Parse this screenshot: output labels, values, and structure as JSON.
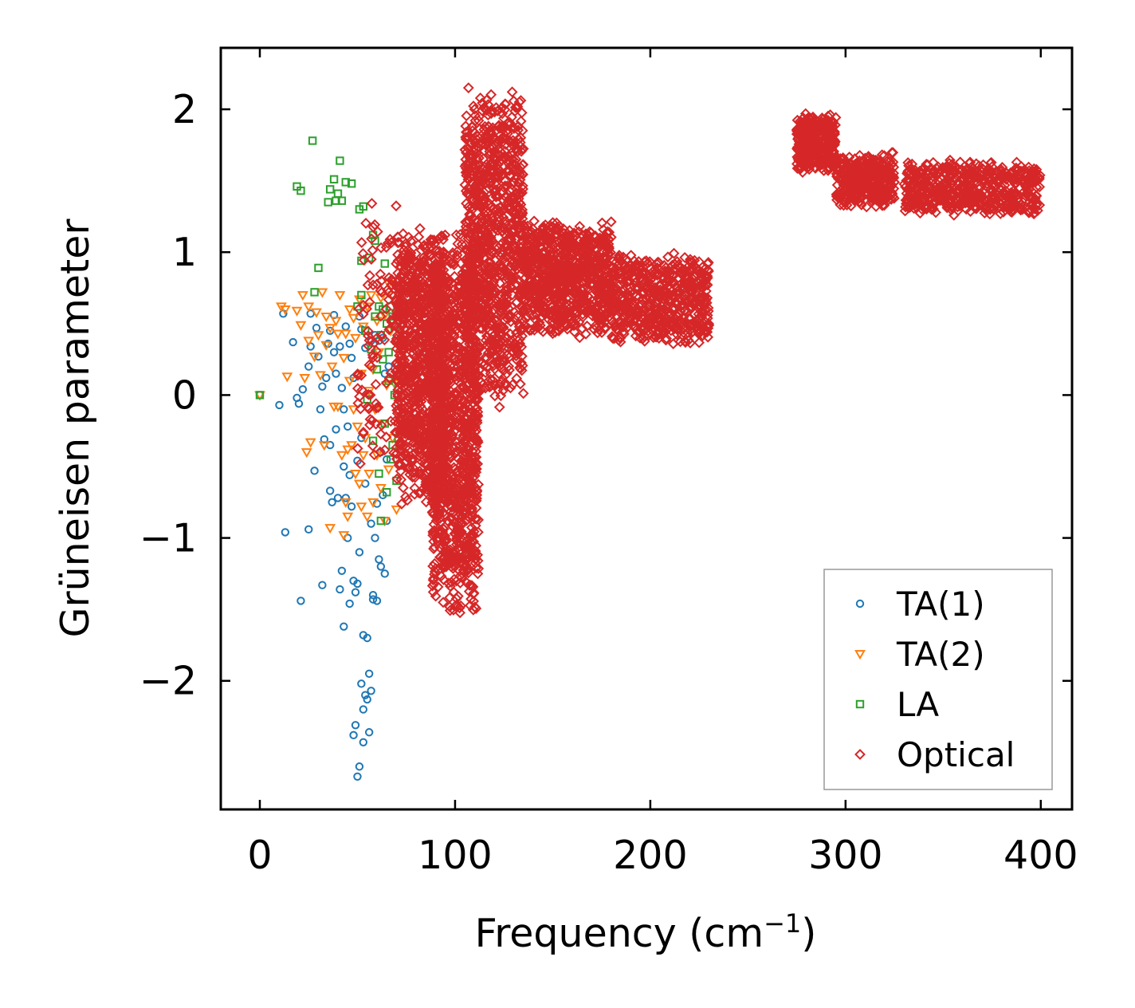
{
  "chart_data": {
    "type": "scatter",
    "xlabel": "Frequency (cm",
    "xlabel_sup": "−1",
    "xlabel_close": ")",
    "ylabel": "Grüneisen parameter",
    "xlim": [
      -20,
      416
    ],
    "ylim": [
      -2.9,
      2.43
    ],
    "xticks": [
      0,
      100,
      200,
      300,
      400
    ],
    "xtick_labels": [
      "0",
      "100",
      "200",
      "300",
      "400"
    ],
    "yticks": [
      -2,
      -1,
      0,
      1,
      2
    ],
    "ytick_labels": [
      "−2",
      "−1",
      "0",
      "1",
      "2"
    ],
    "legend_position": "bottom-right",
    "series": [
      {
        "name": "TA(1)",
        "marker": "circle",
        "color": "#1f77b4",
        "points": [
          [
            0,
            0
          ],
          [
            10,
            -0.07
          ],
          [
            12,
            0.57
          ],
          [
            13,
            -0.96
          ],
          [
            17,
            0.37
          ],
          [
            19,
            -0.02
          ],
          [
            20,
            -0.06
          ],
          [
            21,
            -1.44
          ],
          [
            22,
            0.04
          ],
          [
            25,
            0.2
          ],
          [
            25,
            -0.94
          ],
          [
            26,
            0.34
          ],
          [
            26,
            0.57
          ],
          [
            28,
            -0.53
          ],
          [
            29,
            0.47
          ],
          [
            30,
            0.27
          ],
          [
            31,
            -0.1
          ],
          [
            32,
            0.06
          ],
          [
            32,
            -1.33
          ],
          [
            33,
            -0.31
          ],
          [
            34,
            0.12
          ],
          [
            35,
            0.36
          ],
          [
            36,
            -0.35
          ],
          [
            36,
            0.45
          ],
          [
            36,
            -0.67
          ],
          [
            37,
            -0.75
          ],
          [
            38,
            0.56
          ],
          [
            38,
            0.3
          ],
          [
            39,
            0.15
          ],
          [
            39,
            -0.24
          ],
          [
            40,
            -0.72
          ],
          [
            41,
            -1.36
          ],
          [
            41,
            0.34
          ],
          [
            42,
            0.05
          ],
          [
            42,
            -1.23
          ],
          [
            43,
            -0.5
          ],
          [
            43,
            -0.1
          ],
          [
            43,
            -1.62
          ],
          [
            44,
            -0.72
          ],
          [
            44,
            0.48
          ],
          [
            45,
            -1.0
          ],
          [
            45,
            -0.22
          ],
          [
            46,
            -0.56
          ],
          [
            46,
            0.36
          ],
          [
            46,
            -1.46
          ],
          [
            47,
            0.26
          ],
          [
            47,
            -0.78
          ],
          [
            48,
            -1.3
          ],
          [
            48,
            -2.38
          ],
          [
            48,
            0.12
          ],
          [
            49,
            -1.38
          ],
          [
            49,
            -2.31
          ],
          [
            50,
            -1.32
          ],
          [
            50,
            -2.67
          ],
          [
            50,
            -0.46
          ],
          [
            51,
            0.55
          ],
          [
            51,
            -2.6
          ],
          [
            51,
            -1.1
          ],
          [
            52,
            -2.02
          ],
          [
            52,
            -0.3
          ],
          [
            52,
            0.46
          ],
          [
            53,
            -2.43
          ],
          [
            53,
            -1.68
          ],
          [
            53,
            -2.2
          ],
          [
            54,
            0.33
          ],
          [
            54,
            -0.62
          ],
          [
            54,
            -2.1
          ],
          [
            55,
            -1.7
          ],
          [
            55,
            -2.13
          ],
          [
            56,
            -1.95
          ],
          [
            56,
            0.0
          ],
          [
            56,
            -2.36
          ],
          [
            57,
            -2.07
          ],
          [
            57,
            -0.9
          ],
          [
            57,
            0.38
          ],
          [
            58,
            -1.4
          ],
          [
            58,
            -1.43
          ],
          [
            59,
            -1.0
          ],
          [
            59,
            0.42
          ],
          [
            60,
            -0.76
          ],
          [
            60,
            -1.44
          ],
          [
            61,
            -1.15
          ],
          [
            61,
            0.38
          ],
          [
            62,
            -0.4
          ],
          [
            62,
            -1.2
          ],
          [
            63,
            0.4
          ],
          [
            63,
            -0.7
          ],
          [
            64,
            -1.25
          ],
          [
            64,
            0.15
          ],
          [
            65,
            -0.45
          ],
          [
            65,
            -0.88
          ],
          [
            66,
            0.2
          ]
        ]
      },
      {
        "name": "TA(2)",
        "marker": "triangle-down",
        "color": "#ff7f0e",
        "points": [
          [
            0,
            0
          ],
          [
            11,
            0.62
          ],
          [
            13,
            0.6
          ],
          [
            14,
            0.13
          ],
          [
            19,
            0.59
          ],
          [
            21,
            0.49
          ],
          [
            22,
            0.7
          ],
          [
            23,
            0.12
          ],
          [
            24,
            -0.4
          ],
          [
            25,
            0.38
          ],
          [
            25,
            0.62
          ],
          [
            26,
            -0.33
          ],
          [
            28,
            0.27
          ],
          [
            29,
            0.58
          ],
          [
            30,
            0.42
          ],
          [
            31,
            0.14
          ],
          [
            32,
            0.72
          ],
          [
            33,
            -0.35
          ],
          [
            34,
            0.55
          ],
          [
            34,
            0.35
          ],
          [
            36,
            0.47
          ],
          [
            36,
            -0.93
          ],
          [
            37,
            0.2
          ],
          [
            38,
            -0.08
          ],
          [
            39,
            0.52
          ],
          [
            40,
            -0.08
          ],
          [
            40,
            0.43
          ],
          [
            41,
            0.7
          ],
          [
            42,
            -0.42
          ],
          [
            43,
            0.26
          ],
          [
            43,
            -0.98
          ],
          [
            44,
            -0.75
          ],
          [
            44,
            0.43
          ],
          [
            45,
            -0.38
          ],
          [
            45,
            -0.85
          ],
          [
            46,
            0.6
          ],
          [
            46,
            0.1
          ],
          [
            47,
            -0.35
          ],
          [
            48,
            -0.1
          ],
          [
            48,
            0.54
          ],
          [
            49,
            -0.55
          ],
          [
            49,
            0.4
          ],
          [
            50,
            -0.22
          ],
          [
            51,
            0.67
          ],
          [
            51,
            -0.62
          ],
          [
            52,
            0.15
          ],
          [
            52,
            -0.78
          ],
          [
            53,
            -0.42
          ],
          [
            53,
            0.48
          ],
          [
            54,
            -0.3
          ],
          [
            55,
            0.62
          ],
          [
            55,
            -0.85
          ],
          [
            56,
            0.03
          ],
          [
            56,
            -0.55
          ],
          [
            57,
            0.7
          ],
          [
            58,
            -0.75
          ],
          [
            58,
            0.18
          ],
          [
            59,
            -0.1
          ],
          [
            60,
            0.52
          ],
          [
            60,
            -0.42
          ],
          [
            61,
            0.3
          ],
          [
            62,
            -0.65
          ],
          [
            62,
            0.68
          ],
          [
            63,
            -0.2
          ],
          [
            64,
            0.56
          ],
          [
            64,
            -0.88
          ],
          [
            65,
            0.07
          ],
          [
            66,
            -0.52
          ],
          [
            66,
            0.78
          ],
          [
            67,
            0.45
          ],
          [
            68,
            -0.3
          ],
          [
            68,
            0.7
          ],
          [
            69,
            0.08
          ],
          [
            70,
            -0.8
          ],
          [
            70,
            0.62
          ]
        ]
      },
      {
        "name": "LA",
        "marker": "square",
        "color": "#2ca02c",
        "points": [
          [
            0,
            0
          ],
          [
            19,
            1.46
          ],
          [
            21,
            1.43
          ],
          [
            27,
            1.78
          ],
          [
            28,
            0.72
          ],
          [
            30,
            0.89
          ],
          [
            35,
            1.35
          ],
          [
            36,
            1.44
          ],
          [
            38,
            1.51
          ],
          [
            39,
            1.36
          ],
          [
            40,
            1.41
          ],
          [
            41,
            1.64
          ],
          [
            42,
            1.36
          ],
          [
            44,
            1.49
          ],
          [
            47,
            1.48
          ],
          [
            50,
            0.62
          ],
          [
            51,
            1.3
          ],
          [
            52,
            0.7
          ],
          [
            52,
            0.94
          ],
          [
            53,
            1.32
          ],
          [
            54,
            0.45
          ],
          [
            55,
            -0.03
          ],
          [
            56,
            0.96
          ],
          [
            57,
            0.32
          ],
          [
            58,
            1.12
          ],
          [
            58,
            -0.32
          ],
          [
            59,
            0.55
          ],
          [
            59,
            1.08
          ],
          [
            60,
            0.18
          ],
          [
            61,
            0.62
          ],
          [
            61,
            -0.55
          ],
          [
            62,
            0.42
          ],
          [
            62,
            -0.88
          ],
          [
            63,
            0.25
          ],
          [
            63,
            0.6
          ],
          [
            64,
            -0.2
          ],
          [
            64,
            0.92
          ],
          [
            65,
            0.5
          ],
          [
            65,
            -0.68
          ],
          [
            66,
            0.1
          ],
          [
            66,
            0.3
          ],
          [
            67,
            -0.45
          ],
          [
            67,
            0.62
          ],
          [
            68,
            0.55
          ],
          [
            68,
            -0.35
          ],
          [
            69,
            0.0
          ],
          [
            69,
            0.48
          ],
          [
            70,
            -0.6
          ],
          [
            70,
            0.38
          ],
          [
            71,
            -0.3
          ],
          [
            71,
            0.05
          ],
          [
            72,
            0.56
          ]
        ]
      },
      {
        "name": "Optical",
        "marker": "diamond",
        "color": "#d62728",
        "points": [],
        "regions": [
          {
            "x": [
              50,
              75
            ],
            "y": [
              -0.6,
              1.55
            ],
            "n": 140
          },
          {
            "x": [
              70,
              95
            ],
            "y": [
              -0.8,
              1.2
            ],
            "n": 900
          },
          {
            "x": [
              88,
              112
            ],
            "y": [
              -1.6,
              1.2
            ],
            "n": 1100
          },
          {
            "x": [
              105,
              135
            ],
            "y": [
              -0.1,
              2.2
            ],
            "n": 1000
          },
          {
            "x": [
              135,
              180
            ],
            "y": [
              0.4,
              1.25
            ],
            "n": 850
          },
          {
            "x": [
              180,
              230
            ],
            "y": [
              0.35,
              1.0
            ],
            "n": 600
          },
          {
            "x": [
              275,
              295
            ],
            "y": [
              1.55,
              1.98
            ],
            "n": 350
          },
          {
            "x": [
              295,
              325
            ],
            "y": [
              1.3,
              1.7
            ],
            "n": 350
          },
          {
            "x": [
              330,
              400
            ],
            "y": [
              1.25,
              1.65
            ],
            "n": 550
          }
        ]
      }
    ]
  }
}
